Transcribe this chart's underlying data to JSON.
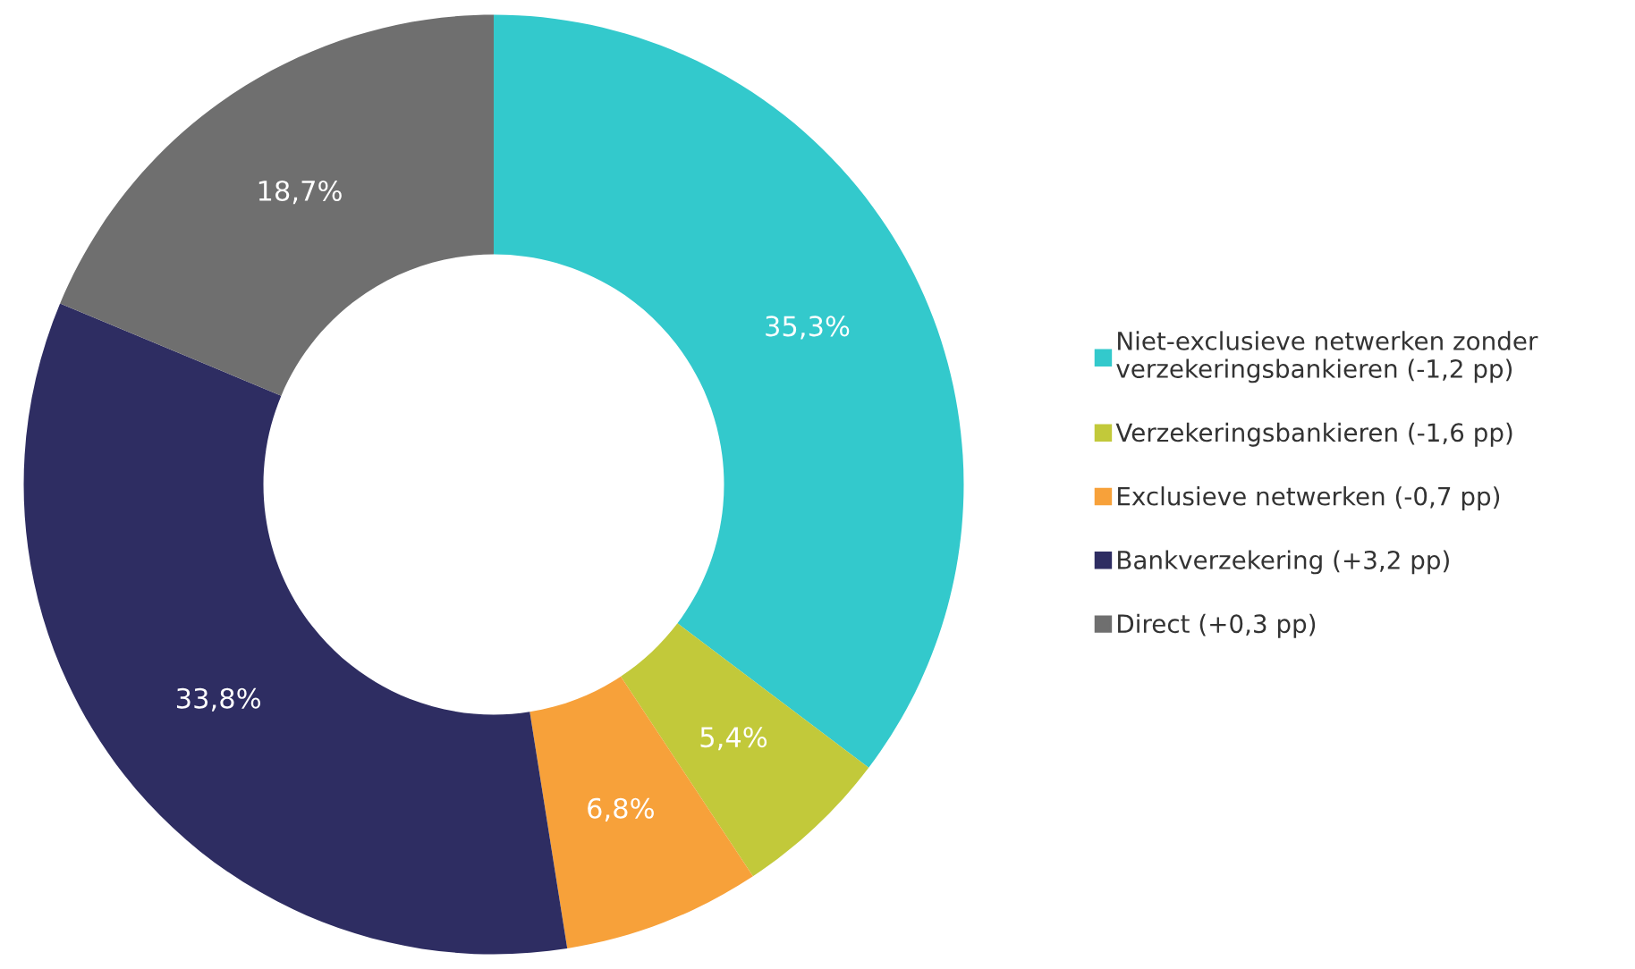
{
  "chart_data": {
    "type": "donut",
    "categories": [
      "Niet-exclusieve netwerken zonder\nverzekeringsbankieren (-1,2 pp)",
      "Verzekeringsbankieren (-1,6 pp)",
      "Exclusieve netwerken (-0,7 pp)",
      "Bankverzekering (+3,2 pp)",
      "Direct (+0,3 pp)"
    ],
    "values": [
      35.3,
      5.4,
      6.8,
      33.8,
      18.7
    ],
    "colors": [
      "#33c9cc",
      "#c2c93a",
      "#f7a13a",
      "#2e2d62",
      "#6f6f6f"
    ],
    "value_labels": [
      "35,3%",
      "5,4%",
      "6,8%",
      "33,8%",
      "18,7%"
    ],
    "legend": "right"
  }
}
